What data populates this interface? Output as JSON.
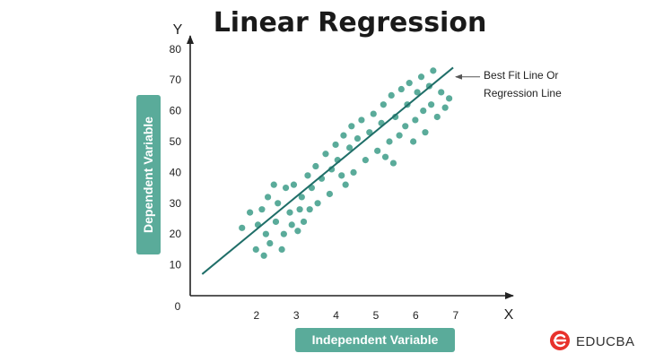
{
  "chart_data": {
    "type": "scatter",
    "title": "Linear Regression",
    "xlabel": "Independent Variable",
    "ylabel": "Dependent Variable",
    "x_axis_letter": "X",
    "y_axis_letter": "Y",
    "origin_label": "0",
    "xticks": [
      2,
      3,
      4,
      5,
      6,
      7
    ],
    "yticks": [
      10,
      20,
      30,
      40,
      50,
      60,
      70,
      80
    ],
    "xlim": [
      0,
      7.3
    ],
    "ylim": [
      0,
      85
    ],
    "grid": false,
    "point_color": "#5aab9a",
    "line_color": "#1f6e68",
    "label_bg_color": "#5aab9a",
    "points": [
      {
        "x": 1.3,
        "y": 22
      },
      {
        "x": 1.5,
        "y": 27
      },
      {
        "x": 1.65,
        "y": 15
      },
      {
        "x": 1.7,
        "y": 23
      },
      {
        "x": 1.8,
        "y": 28
      },
      {
        "x": 1.85,
        "y": 13
      },
      {
        "x": 1.9,
        "y": 20
      },
      {
        "x": 1.95,
        "y": 32
      },
      {
        "x": 2.0,
        "y": 17
      },
      {
        "x": 2.1,
        "y": 36
      },
      {
        "x": 2.15,
        "y": 24
      },
      {
        "x": 2.2,
        "y": 30
      },
      {
        "x": 2.3,
        "y": 15
      },
      {
        "x": 2.35,
        "y": 20
      },
      {
        "x": 2.4,
        "y": 35
      },
      {
        "x": 2.5,
        "y": 27
      },
      {
        "x": 2.55,
        "y": 23
      },
      {
        "x": 2.6,
        "y": 36
      },
      {
        "x": 2.7,
        "y": 21
      },
      {
        "x": 2.75,
        "y": 28
      },
      {
        "x": 2.8,
        "y": 32
      },
      {
        "x": 2.85,
        "y": 24
      },
      {
        "x": 2.95,
        "y": 39
      },
      {
        "x": 3.0,
        "y": 28
      },
      {
        "x": 3.05,
        "y": 35
      },
      {
        "x": 3.15,
        "y": 42
      },
      {
        "x": 3.2,
        "y": 30
      },
      {
        "x": 3.3,
        "y": 38
      },
      {
        "x": 3.4,
        "y": 46
      },
      {
        "x": 3.5,
        "y": 33
      },
      {
        "x": 3.55,
        "y": 41
      },
      {
        "x": 3.65,
        "y": 49
      },
      {
        "x": 3.7,
        "y": 44
      },
      {
        "x": 3.8,
        "y": 39
      },
      {
        "x": 3.85,
        "y": 52
      },
      {
        "x": 3.9,
        "y": 36
      },
      {
        "x": 4.0,
        "y": 48
      },
      {
        "x": 4.05,
        "y": 55
      },
      {
        "x": 4.1,
        "y": 40
      },
      {
        "x": 4.2,
        "y": 51
      },
      {
        "x": 4.3,
        "y": 57
      },
      {
        "x": 4.4,
        "y": 44
      },
      {
        "x": 4.5,
        "y": 53
      },
      {
        "x": 4.6,
        "y": 59
      },
      {
        "x": 4.7,
        "y": 47
      },
      {
        "x": 4.8,
        "y": 56
      },
      {
        "x": 4.85,
        "y": 62
      },
      {
        "x": 4.9,
        "y": 45
      },
      {
        "x": 5.0,
        "y": 50
      },
      {
        "x": 5.05,
        "y": 65
      },
      {
        "x": 5.1,
        "y": 43
      },
      {
        "x": 5.15,
        "y": 58
      },
      {
        "x": 5.25,
        "y": 52
      },
      {
        "x": 5.3,
        "y": 67
      },
      {
        "x": 5.4,
        "y": 55
      },
      {
        "x": 5.45,
        "y": 62
      },
      {
        "x": 5.5,
        "y": 69
      },
      {
        "x": 5.6,
        "y": 50
      },
      {
        "x": 5.65,
        "y": 57
      },
      {
        "x": 5.7,
        "y": 66
      },
      {
        "x": 5.8,
        "y": 71
      },
      {
        "x": 5.85,
        "y": 60
      },
      {
        "x": 5.9,
        "y": 53
      },
      {
        "x": 6.0,
        "y": 68
      },
      {
        "x": 6.05,
        "y": 62
      },
      {
        "x": 6.1,
        "y": 73
      },
      {
        "x": 6.2,
        "y": 58
      },
      {
        "x": 6.3,
        "y": 66
      },
      {
        "x": 6.4,
        "y": 61
      },
      {
        "x": 6.5,
        "y": 64
      }
    ],
    "regression_line": {
      "x1": 0.3,
      "y1": 7,
      "x2": 6.6,
      "y2": 74
    },
    "annotation": {
      "lines": [
        "Best Fit Line Or",
        "Regression Line"
      ],
      "anchor_x": 6.6,
      "anchor_y": 71
    }
  },
  "brand": {
    "logo_icon": "educba-e-icon",
    "name": "EDUCBA",
    "color": "#e8322c"
  }
}
